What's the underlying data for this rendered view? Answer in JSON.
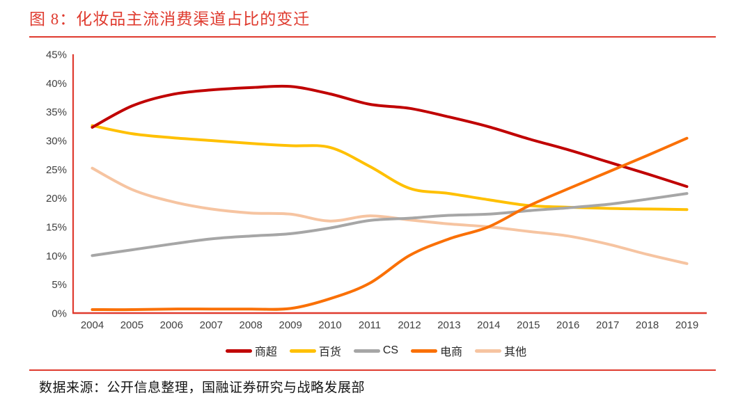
{
  "header": {
    "title": "图 8：化妆品主流消费渠道占比的变迁"
  },
  "footer": {
    "source": "数据来源：公开信息整理，国融证券研究与战略发展部"
  },
  "colors": {
    "accent_red": "#DF3A2E",
    "axis_text": "#404040",
    "legend_text": "#262626",
    "supermarket": "#C00000",
    "department_store": "#FFC000",
    "cs": "#A6A6A6",
    "ecommerce": "#FA7005",
    "others": "#F6C4A1"
  },
  "chart_data": {
    "type": "line",
    "title": "化妆品主流消费渠道占比的变迁",
    "x": [
      2004,
      2005,
      2006,
      2007,
      2008,
      2009,
      2010,
      2011,
      2012,
      2013,
      2014,
      2015,
      2016,
      2017,
      2018,
      2019
    ],
    "yticks": [
      "0%",
      "5%",
      "10%",
      "15%",
      "20%",
      "25%",
      "30%",
      "35%",
      "40%",
      "45%"
    ],
    "ylim": [
      0,
      45
    ],
    "grid": false,
    "legend_position": "bottom",
    "series": [
      {
        "name": "商超",
        "key": "supermarket",
        "color": "#C00000",
        "values": [
          32.3,
          36.0,
          38.0,
          38.8,
          39.2,
          39.4,
          38.1,
          36.3,
          35.6,
          34.1,
          32.4,
          30.3,
          28.4,
          26.3,
          24.2,
          22.0
        ]
      },
      {
        "name": "百货",
        "key": "department-store",
        "color": "#FFC000",
        "values": [
          32.6,
          31.2,
          30.5,
          30.0,
          29.5,
          29.1,
          28.8,
          25.5,
          21.7,
          20.8,
          19.7,
          18.7,
          18.4,
          18.2,
          18.1,
          18.0
        ]
      },
      {
        "name": "CS",
        "key": "cs",
        "color": "#A6A6A6",
        "values": [
          10.0,
          11.0,
          12.0,
          12.9,
          13.4,
          13.8,
          14.8,
          16.1,
          16.5,
          17.0,
          17.2,
          17.8,
          18.3,
          18.9,
          19.8,
          20.8
        ]
      },
      {
        "name": "电商",
        "key": "ecommerce",
        "color": "#FA7005",
        "values": [
          0.6,
          0.6,
          0.7,
          0.7,
          0.7,
          0.8,
          2.5,
          5.2,
          10.0,
          12.9,
          15.0,
          18.6,
          21.6,
          24.5,
          27.4,
          30.4
        ]
      },
      {
        "name": "其他",
        "key": "others",
        "color": "#F6C4A1",
        "values": [
          25.2,
          21.5,
          19.4,
          18.1,
          17.4,
          17.2,
          16.0,
          16.9,
          16.2,
          15.5,
          15.0,
          14.2,
          13.4,
          12.0,
          10.2,
          8.6
        ]
      }
    ]
  }
}
